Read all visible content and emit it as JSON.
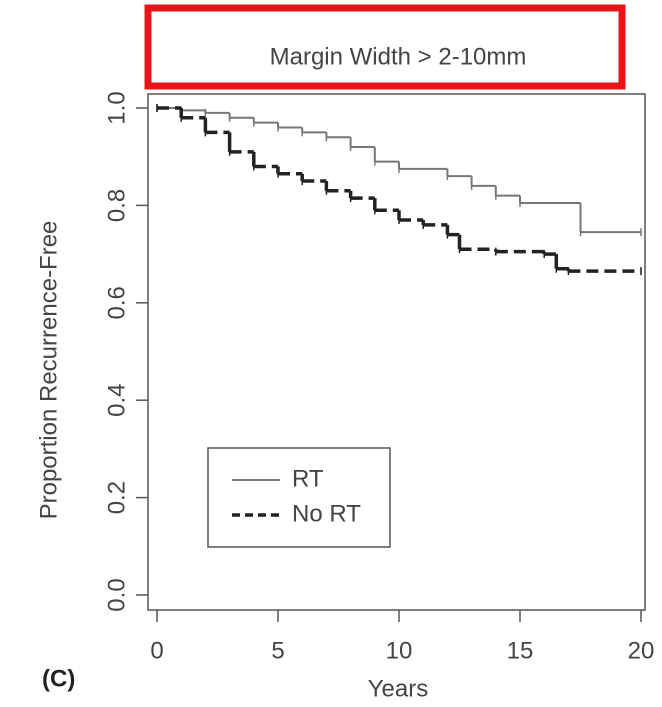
{
  "chart_data": {
    "type": "step",
    "title": "Margin Width > 2-10mm",
    "panel_label": "(C)",
    "x_label": "Years",
    "y_label": "Proportion Recurrence-Free",
    "xlim": [
      0,
      20
    ],
    "ylim": [
      0,
      1
    ],
    "xticks": [
      0,
      5,
      10,
      15,
      20
    ],
    "yticks": [
      {
        "value": 0,
        "label": "0.0"
      },
      0.2,
      0.4,
      0.6,
      0.8,
      {
        "value": 1,
        "label": "1.0"
      }
    ],
    "series": [
      {
        "name": "RT",
        "color": "#777777",
        "linestyle": "solid",
        "x": [
          0,
          1,
          2,
          3,
          4,
          5,
          6,
          7,
          8,
          9,
          10,
          12,
          13,
          14,
          15,
          17.5,
          20
        ],
        "values": [
          1.0,
          0.995,
          0.99,
          0.98,
          0.97,
          0.96,
          0.95,
          0.94,
          0.92,
          0.89,
          0.875,
          0.86,
          0.84,
          0.82,
          0.805,
          0.745,
          0.745
        ]
      },
      {
        "name": "No RT",
        "color": "#222222",
        "linestyle": "dashed",
        "x": [
          0,
          1,
          2,
          3,
          4,
          5,
          6,
          7,
          8,
          9,
          10,
          11,
          12,
          12.5,
          14,
          16,
          16.5,
          17,
          20
        ],
        "values": [
          1.0,
          0.98,
          0.95,
          0.91,
          0.88,
          0.865,
          0.85,
          0.83,
          0.815,
          0.79,
          0.77,
          0.76,
          0.74,
          0.71,
          0.705,
          0.7,
          0.67,
          0.665,
          0.665
        ]
      }
    ]
  }
}
